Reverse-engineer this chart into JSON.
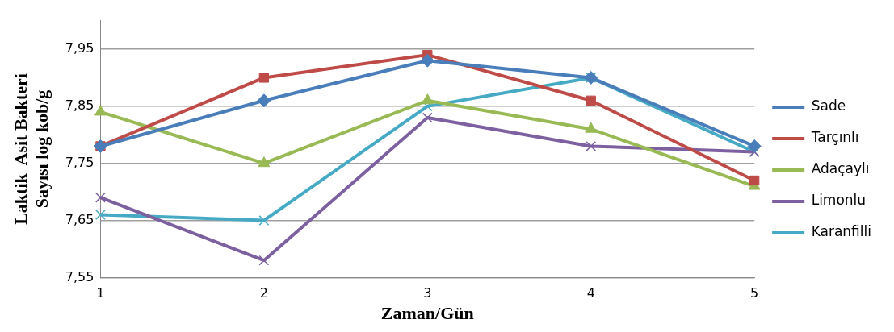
{
  "chart_data": {
    "type": "line",
    "xlabel": "Zaman/Gün",
    "ylabel": "Laktik  Asit Bakteri\nSayısı log kob/g",
    "categories": [
      "1",
      "2",
      "3",
      "4",
      "5"
    ],
    "series": [
      {
        "name": "Sade",
        "color": "#4a7ebb",
        "marker": "diamond",
        "values": [
          7.78,
          7.86,
          7.93,
          7.9,
          7.78
        ]
      },
      {
        "name": "Tarçınlı",
        "color": "#be4b48",
        "marker": "square",
        "values": [
          7.78,
          7.9,
          7.94,
          7.86,
          7.72
        ]
      },
      {
        "name": "Adaçaylı",
        "color": "#98b954",
        "marker": "triangle",
        "values": [
          7.84,
          7.75,
          7.86,
          7.81,
          7.71
        ]
      },
      {
        "name": "Limonlu",
        "color": "#7d60a0",
        "marker": "cross",
        "values": [
          7.69,
          7.58,
          7.83,
          7.78,
          7.77
        ]
      },
      {
        "name": "Karanfilli",
        "color": "#46aac5",
        "marker": "cross",
        "values": [
          7.66,
          7.65,
          7.85,
          7.9,
          7.77
        ]
      }
    ],
    "ylim": [
      7.55,
      8.0
    ],
    "yticks": [
      {
        "value": 7.55,
        "label": "7,55"
      },
      {
        "value": 7.65,
        "label": "7,65"
      },
      {
        "value": 7.75,
        "label": "7,75"
      },
      {
        "value": 7.85,
        "label": "7,85"
      },
      {
        "value": 7.95,
        "label": "7,95"
      }
    ],
    "grid": "y",
    "legend": "right",
    "line_style": "solid"
  }
}
